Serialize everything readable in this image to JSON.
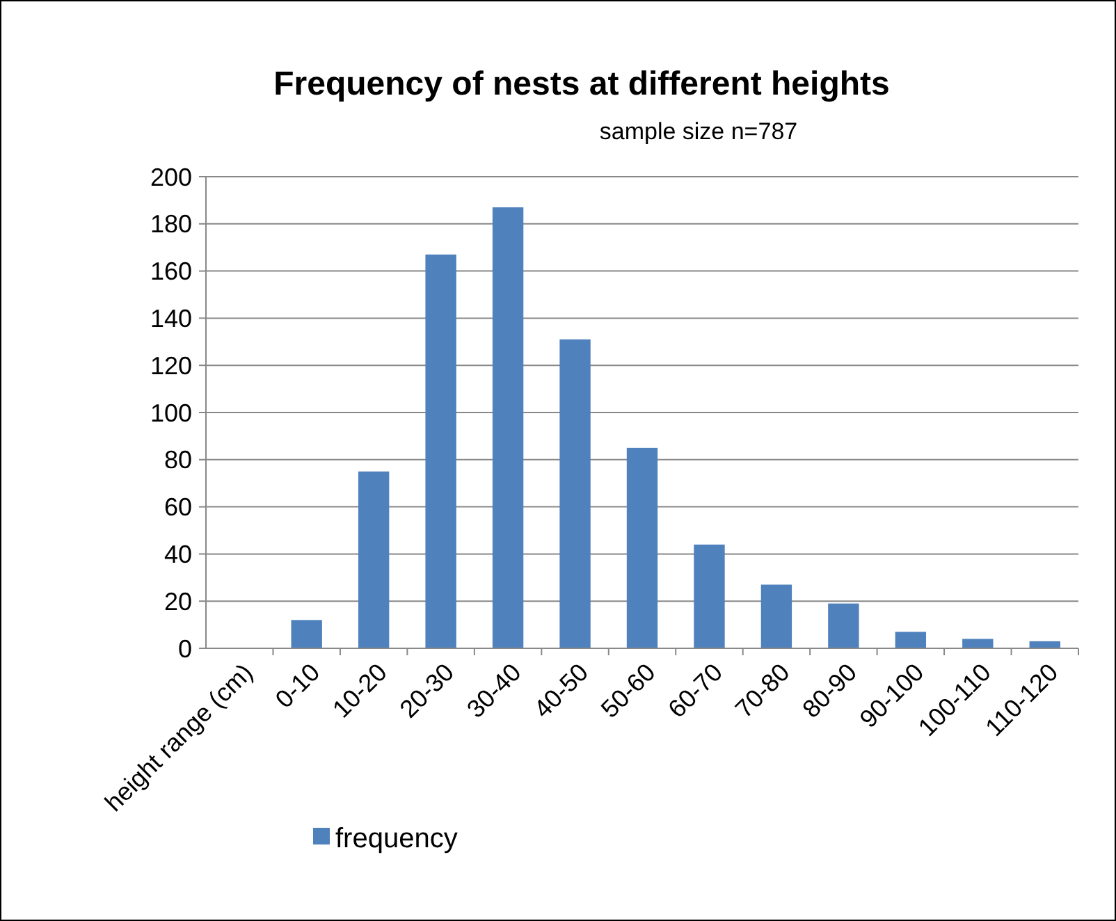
{
  "chart_data": {
    "type": "bar",
    "title": "Frequency of nests at different heights",
    "subtitle": "sample size n=787",
    "categories": [
      "height range (cm)",
      "0-10",
      "10-20",
      "20-30",
      "30-40",
      "40-50",
      "50-60",
      "60-70",
      "70-80",
      "80-90",
      "90-100",
      "100-110",
      "110-120"
    ],
    "series": [
      {
        "name": "frequency",
        "color": "#4f81bd",
        "values": [
          null,
          12,
          75,
          167,
          187,
          131,
          85,
          44,
          27,
          19,
          7,
          4,
          3
        ]
      }
    ],
    "ylim": [
      0,
      200
    ],
    "yticks": [
      0,
      20,
      40,
      60,
      80,
      100,
      120,
      140,
      160,
      180,
      200
    ],
    "grid": "y",
    "legend": "bottom"
  }
}
